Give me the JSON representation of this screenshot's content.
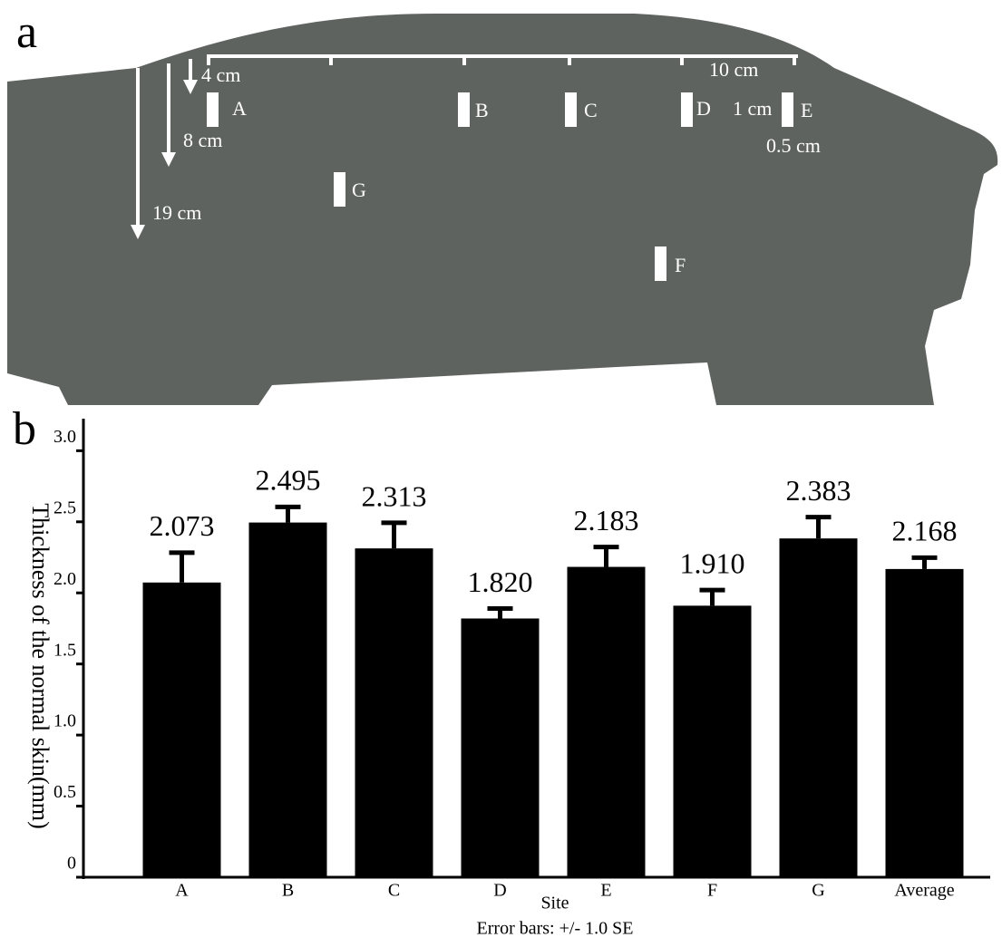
{
  "panel_a": {
    "label": "a",
    "dimensions": [
      "4 cm",
      "8 cm",
      "19 cm",
      "10 cm",
      "1 cm",
      "0.5 cm"
    ],
    "sites": [
      "A",
      "B",
      "C",
      "D",
      "E",
      "F",
      "G"
    ]
  },
  "panel_b": {
    "label": "b"
  },
  "chart_data": {
    "type": "bar",
    "y_label": "Thickness of the normal skin(mm)",
    "x_label": "Site",
    "note": "Error bars: +/- 1.0 SE",
    "categories": [
      "A",
      "B",
      "C",
      "D",
      "E",
      "F",
      "G",
      "Average"
    ],
    "values": [
      2.073,
      2.495,
      2.313,
      1.82,
      2.183,
      1.91,
      2.383,
      2.168
    ],
    "value_labels": [
      "2.073",
      "2.495",
      "2.313",
      "1.820",
      "2.183",
      "1.910",
      "2.383",
      "2.168"
    ],
    "errors": [
      0.21,
      0.11,
      0.18,
      0.07,
      0.14,
      0.11,
      0.15,
      0.08
    ],
    "color": "#000000",
    "ylim": [
      0,
      3.2
    ],
    "yticks": [
      0,
      0.5,
      {
        "value": 1,
        "label": "1.0"
      },
      1.5,
      {
        "value": 2,
        "label": "2.0"
      },
      2.5,
      {
        "value": 3,
        "label": "3.0"
      }
    ],
    "grid": false
  }
}
